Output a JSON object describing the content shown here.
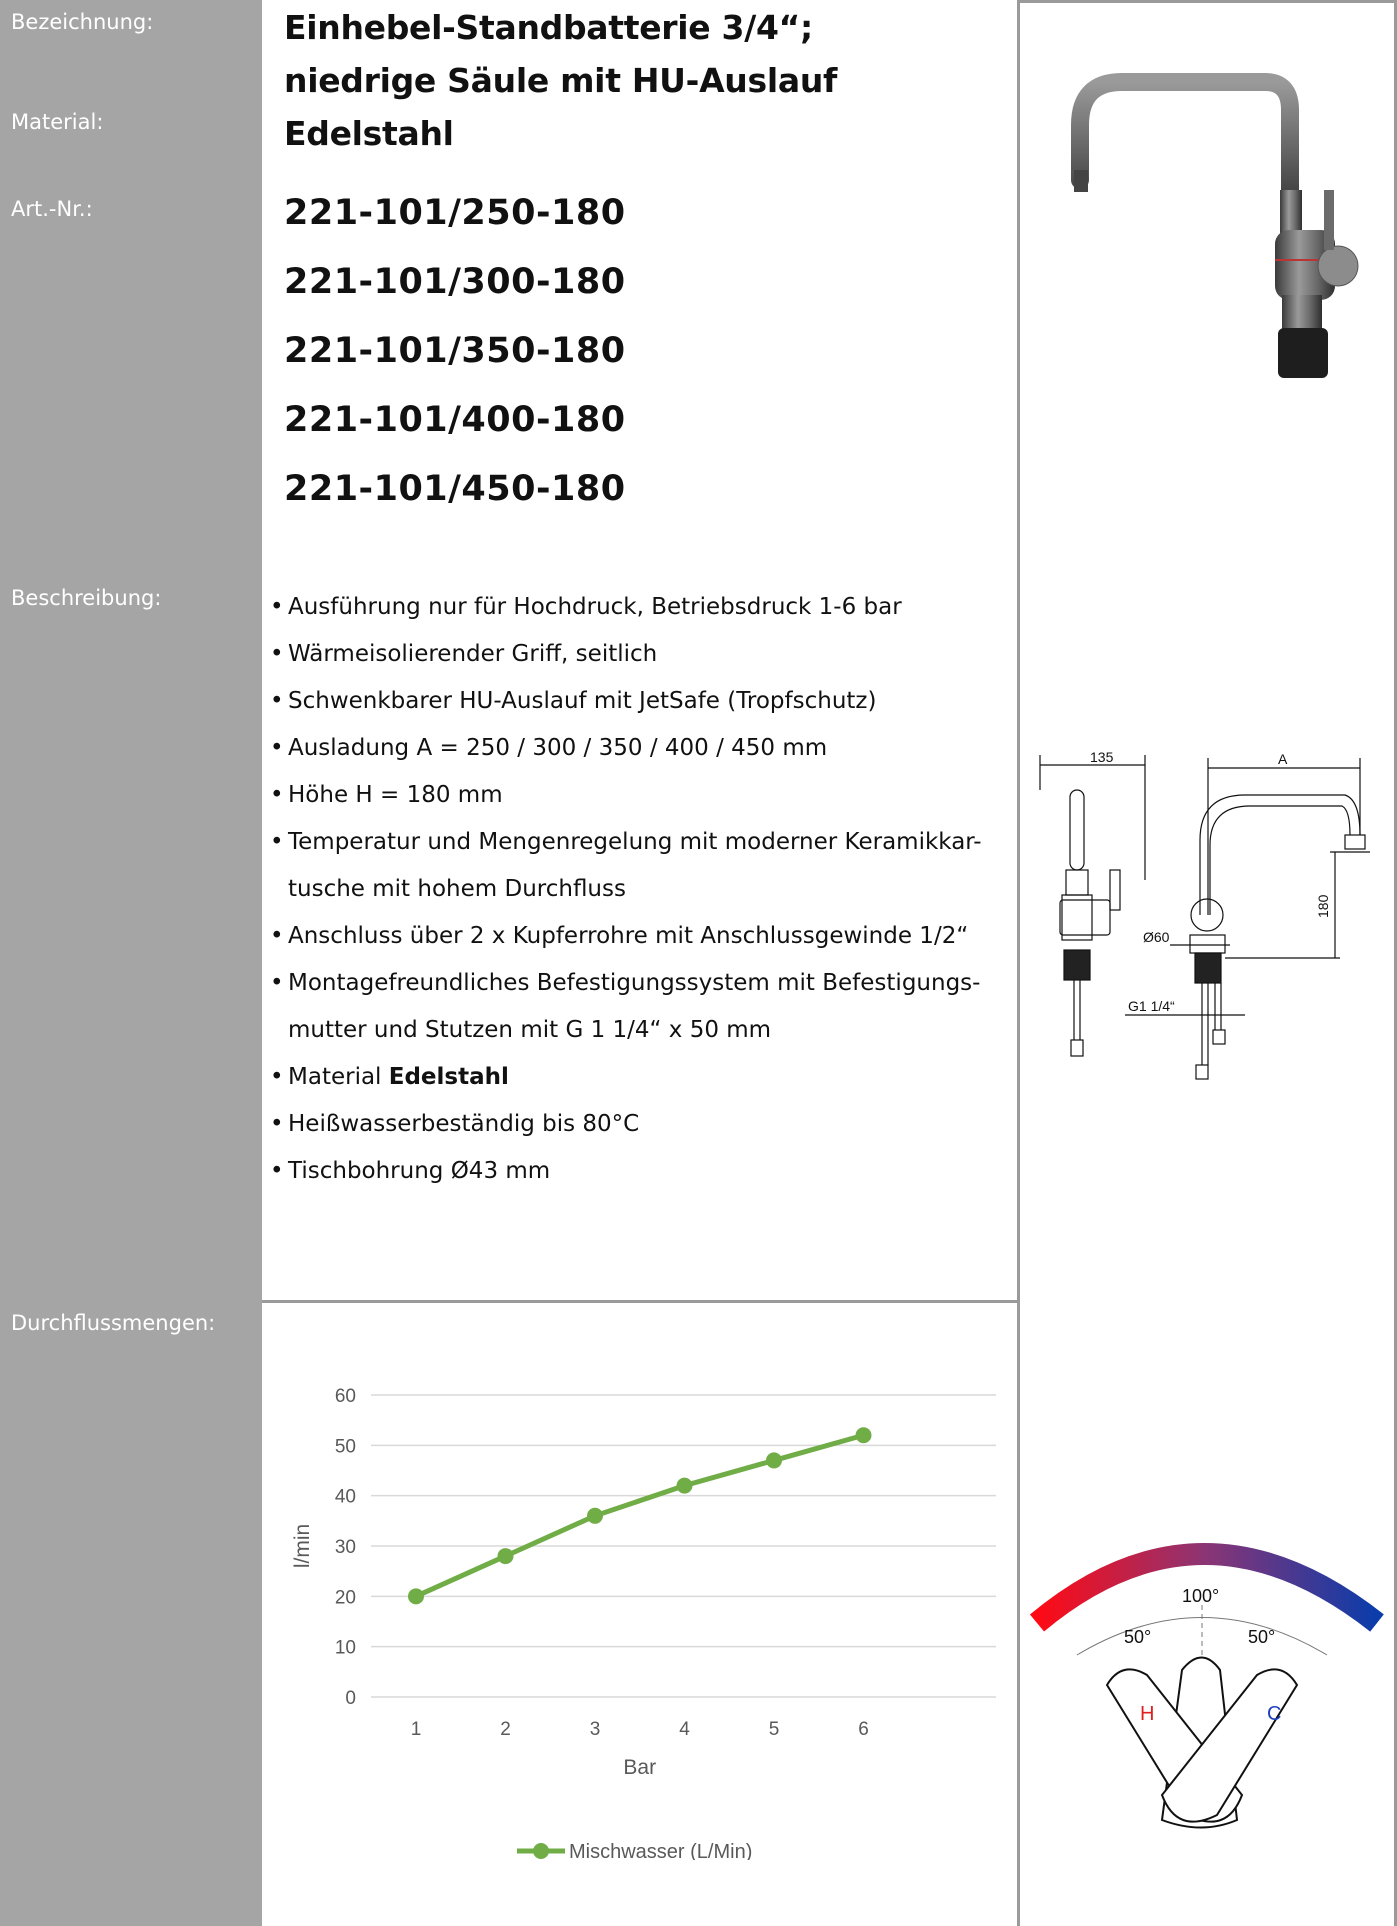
{
  "labels": {
    "bezeichnung": "Bezeichnung:",
    "material": "Material:",
    "artnr": "Art.-Nr.:",
    "beschreibung": "Beschreibung:",
    "durchfluss": "Durchflussmengen:"
  },
  "product": {
    "title_line1": "Einhebel-Standbatterie 3/4“;",
    "title_line2": "niedrige Säule mit HU-Auslauf",
    "material": "Edelstahl",
    "article_numbers": [
      "221-101/250-180",
      "221-101/300-180",
      "221-101/350-180",
      "221-101/400-180",
      "221-101/450-180"
    ]
  },
  "description": [
    "Ausführung nur für Hochdruck, Betriebsdruck 1-6 bar",
    "Wärmeisolierender Griff, seitlich",
    "Schwenkbarer HU-Auslauf mit JetSafe (Tropfschutz)",
    "Ausladung A = 250 / 300 / 350 / 400 / 450 mm",
    "Höhe H = 180 mm",
    "Temperatur und Mengenregelung mit moderner Keramikkar-",
    "tusche mit hohem Durchfluss",
    "Anschluss über 2 x Kupferrohre mit Anschlussgewinde 1/2“",
    "Montagefreundliches Befestigungssystem mit Befestigungs-",
    "mutter und Stutzen mit G 1 1/4“ x 50 mm",
    "Material",
    "Edelstahl",
    "Heißwasserbeständig bis 80°C",
    "Tischbohrung Ø43 mm"
  ],
  "drawing": {
    "dim_135": "135",
    "dim_a": "A",
    "dim_180": "180",
    "dim_d60": "Ø60",
    "dim_g": "G1 1/4“"
  },
  "lever": {
    "angle_total": "100°",
    "angle_left": "50°",
    "angle_right": "50°",
    "hot": "H",
    "cold": "C"
  },
  "chart_data": {
    "type": "line",
    "categories": [
      "1",
      "2",
      "3",
      "4",
      "5",
      "6"
    ],
    "series": [
      {
        "name": "Mischwasser (L/Min)",
        "values": [
          20,
          28,
          36,
          42,
          47,
          52
        ],
        "color": "#70ad47"
      }
    ],
    "xlabel": "Bar",
    "ylabel": "l/min",
    "ylim": [
      0,
      60
    ],
    "yticks": [
      "0",
      "10",
      "20",
      "30",
      "40",
      "50",
      "60"
    ],
    "grid": true,
    "legend": "bottom"
  }
}
